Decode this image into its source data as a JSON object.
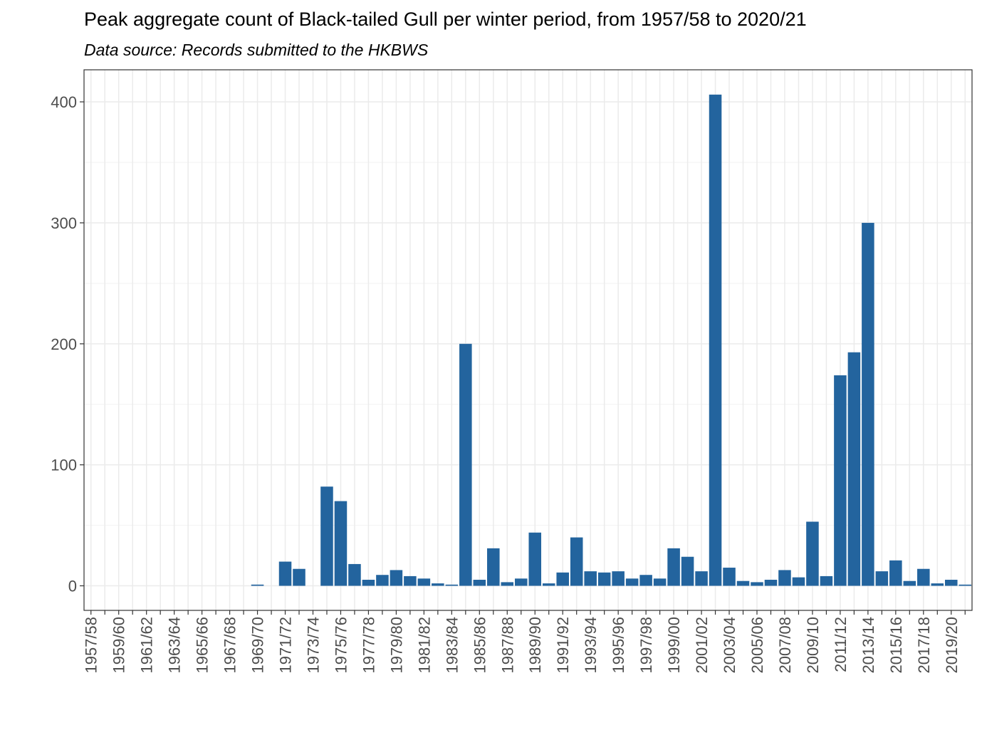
{
  "chart_data": {
    "type": "bar",
    "title": "Peak aggregate count of Black-tailed Gull per winter period, from 1957/58 to 2020/21",
    "subtitle": "Data source: Records submitted to the HKBWS",
    "categories": [
      "1957/58",
      null,
      "1959/60",
      null,
      "1961/62",
      null,
      "1963/64",
      null,
      "1965/66",
      null,
      "1967/68",
      null,
      "1969/70",
      null,
      "1971/72",
      null,
      "1973/74",
      null,
      "1975/76",
      null,
      "1977/78",
      null,
      "1979/80",
      null,
      "1981/82",
      null,
      "1983/84",
      null,
      "1985/86",
      null,
      "1987/88",
      null,
      "1989/90",
      null,
      "1991/92",
      null,
      "1993/94",
      null,
      "1995/96",
      null,
      "1997/98",
      null,
      "1999/00",
      null,
      "2001/02",
      null,
      "2003/04",
      null,
      "2005/06",
      null,
      "2007/08",
      null,
      "2009/10",
      null,
      "2011/12",
      null,
      "2013/14",
      null,
      "2015/16",
      null,
      "2017/18",
      null,
      "2019/20",
      null
    ],
    "values": [
      null,
      null,
      null,
      null,
      null,
      null,
      null,
      null,
      null,
      null,
      null,
      null,
      1,
      null,
      20,
      14,
      null,
      82,
      70,
      18,
      5,
      9,
      13,
      8,
      6,
      2,
      1,
      200,
      5,
      31,
      3,
      6,
      44,
      2,
      11,
      40,
      12,
      11,
      12,
      6,
      9,
      6,
      31,
      24,
      12,
      406,
      15,
      4,
      3,
      5,
      13,
      7,
      53,
      8,
      174,
      193,
      300,
      12,
      21,
      4,
      14,
      2,
      5,
      1
    ],
    "color": "#23649e",
    "ylim": [
      -20.3,
      426.5
    ],
    "yticks": [
      0,
      100,
      200,
      300,
      400
    ],
    "grid": true
  }
}
